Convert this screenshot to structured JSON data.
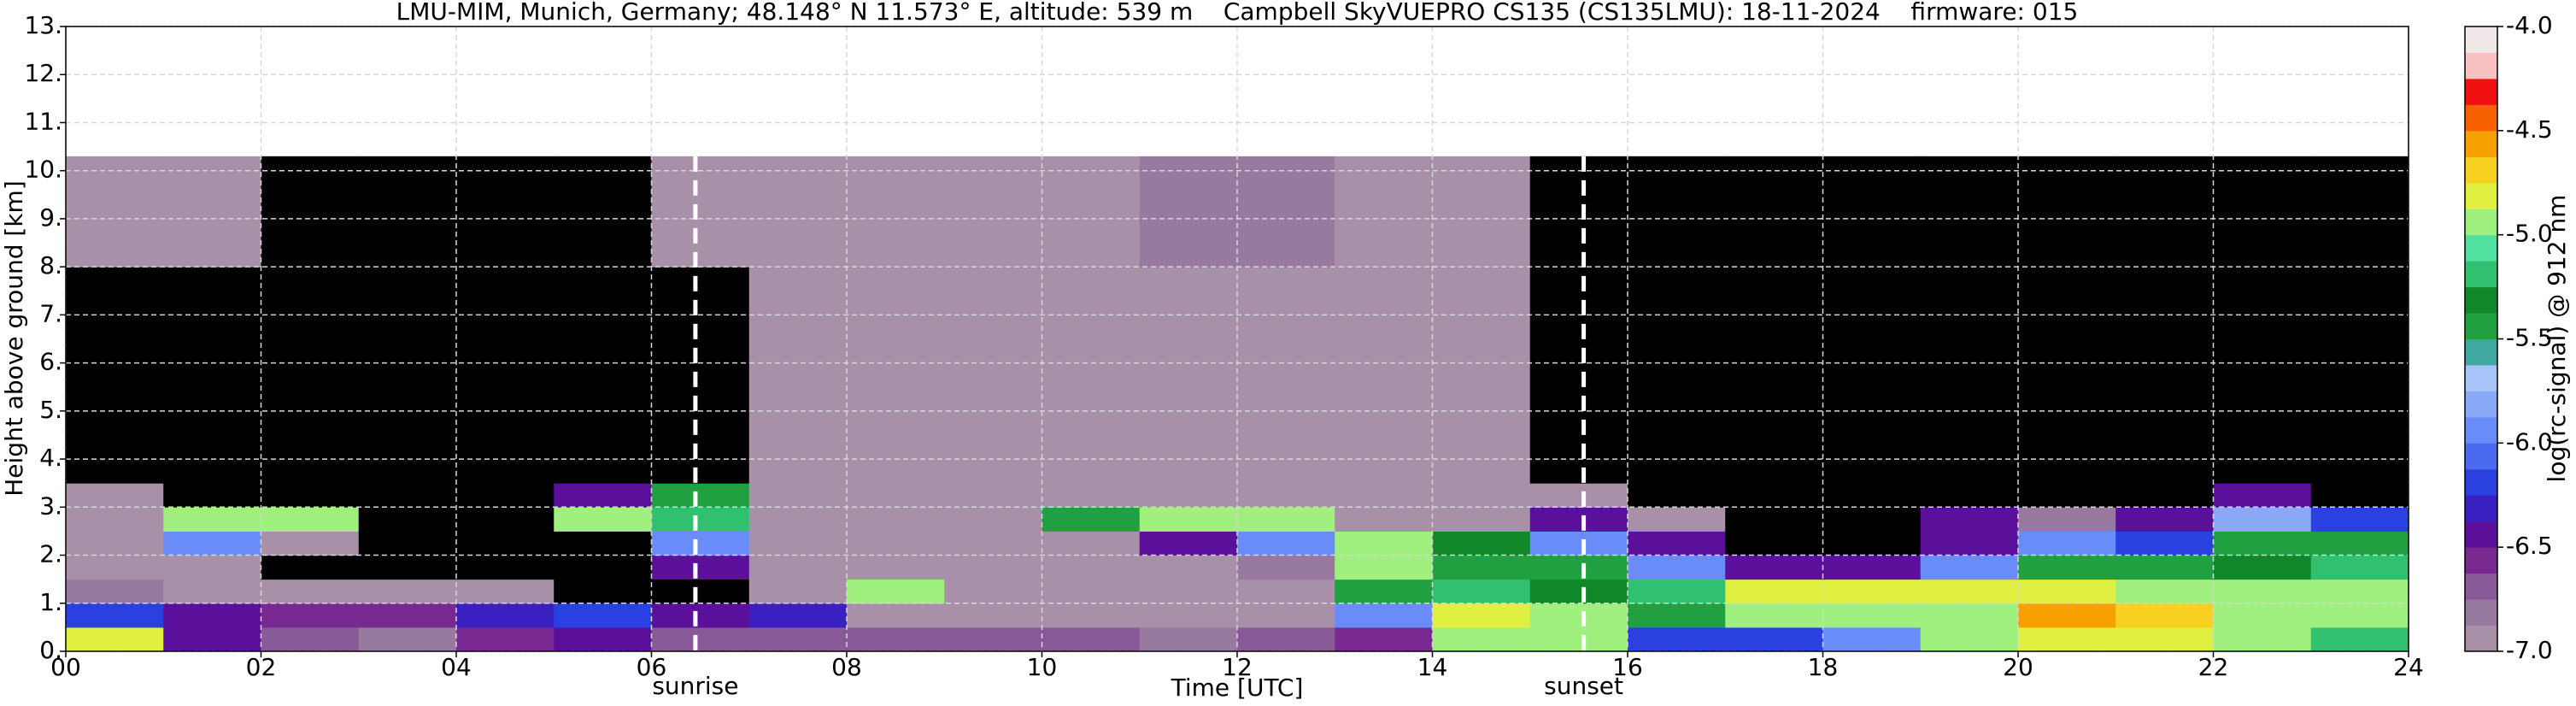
{
  "chart_data": {
    "type": "heatmap",
    "title": "LMU-MIM, Munich, Germany; 48.148° N 11.573° E, altitude: 539 m    Campbell SkyVUEPRO CS135 (CS135LMU): 18-11-2024    firmware: 015",
    "xlabel": "Time [UTC]",
    "ylabel": "Height above ground [km]",
    "colorbar_label": "log(rc-signal) @ 912 nm",
    "xlim": [
      0,
      24
    ],
    "ylim": [
      0,
      13
    ],
    "xticks": [
      {
        "value": 0,
        "label": "00"
      },
      {
        "value": 2,
        "label": "02"
      },
      {
        "value": 4,
        "label": "04"
      },
      {
        "value": 6,
        "label": "06"
      },
      {
        "value": 8,
        "label": "08"
      },
      {
        "value": 10,
        "label": "10"
      },
      {
        "value": 12,
        "label": "12"
      },
      {
        "value": 14,
        "label": "14"
      },
      {
        "value": 16,
        "label": "16"
      },
      {
        "value": 18,
        "label": "18"
      },
      {
        "value": 20,
        "label": "20"
      },
      {
        "value": 22,
        "label": "22"
      },
      {
        "value": 24,
        "label": "24"
      }
    ],
    "yticks": [
      {
        "value": 0,
        "label": "0."
      },
      {
        "value": 1,
        "label": "1."
      },
      {
        "value": 2,
        "label": "2."
      },
      {
        "value": 3,
        "label": "3."
      },
      {
        "value": 4,
        "label": "4."
      },
      {
        "value": 5,
        "label": "5."
      },
      {
        "value": 6,
        "label": "6."
      },
      {
        "value": 7,
        "label": "7."
      },
      {
        "value": 8,
        "label": "8."
      },
      {
        "value": 9,
        "label": "9."
      },
      {
        "value": 10,
        "label": "10."
      },
      {
        "value": 11,
        "label": "11."
      },
      {
        "value": 12,
        "label": "12."
      },
      {
        "value": 13,
        "label": "13."
      }
    ],
    "grid": true,
    "x_edges": [
      0,
      1,
      2,
      3,
      4,
      5,
      6,
      7,
      8,
      9,
      10,
      11,
      12,
      13,
      14,
      15,
      16,
      17,
      18,
      19,
      20,
      21,
      22,
      23,
      24
    ],
    "y_edges": [
      0,
      0.5,
      1,
      1.5,
      2,
      2.5,
      3,
      3.5,
      4,
      6,
      8,
      10.3
    ],
    "z": [
      [
        -4.8,
        -6.2,
        -6.8,
        -7.0,
        -7.0,
        -7.0,
        -7.0,
        -7.5,
        -7.5,
        -7.5,
        -7.0
      ],
      [
        -6.5,
        -6.4,
        -6.9,
        -7.0,
        -6.0,
        -5.0,
        -7.2,
        -7.5,
        -7.5,
        -7.5,
        -7.0
      ],
      [
        -6.7,
        -6.6,
        -7.0,
        -7.2,
        -7.0,
        -5.0,
        -7.5,
        -7.5,
        -7.5,
        -7.5,
        -7.2
      ],
      [
        -6.8,
        -6.6,
        -6.9,
        -7.5,
        -7.5,
        -7.5,
        -7.5,
        -7.5,
        -7.5,
        -7.5,
        -7.2
      ],
      [
        -6.6,
        -6.3,
        -7.0,
        -7.5,
        -7.5,
        -7.5,
        -7.5,
        -7.5,
        -7.5,
        -7.5,
        -7.3
      ],
      [
        -6.5,
        -6.2,
        -7.2,
        -7.5,
        -7.5,
        -5.0,
        -6.5,
        -7.5,
        -7.5,
        -7.5,
        -7.3
      ],
      [
        -6.7,
        -6.4,
        -7.3,
        -6.5,
        -6.0,
        -5.2,
        -5.5,
        -7.3,
        -7.3,
        -7.3,
        -7.0
      ],
      [
        -6.7,
        -6.3,
        -7.0,
        -7.0,
        -7.0,
        -7.0,
        -7.0,
        -7.0,
        -7.0,
        -7.0,
        -6.9
      ],
      [
        -6.7,
        -7.0,
        -5.0,
        -7.0,
        -7.0,
        -7.0,
        -7.0,
        -7.0,
        -7.0,
        -7.0,
        -6.9
      ],
      [
        -6.7,
        -7.0,
        -7.0,
        -7.0,
        -7.0,
        -7.0,
        -7.0,
        -7.0,
        -7.0,
        -7.0,
        -6.9
      ],
      [
        -6.7,
        -7.0,
        -7.0,
        -7.0,
        -7.0,
        -5.5,
        -7.0,
        -7.0,
        -7.0,
        -7.0,
        -6.9
      ],
      [
        -6.8,
        -7.0,
        -7.0,
        -7.0,
        -6.5,
        -5.0,
        -7.0,
        -7.0,
        -7.0,
        -7.0,
        -6.8
      ],
      [
        -6.7,
        -7.0,
        -7.0,
        -6.8,
        -6.0,
        -5.0,
        -7.0,
        -7.0,
        -7.0,
        -7.0,
        -6.8
      ],
      [
        -6.6,
        -6.0,
        -5.5,
        -5.0,
        -5.0,
        -7.0,
        -7.0,
        -7.0,
        -7.0,
        -7.0,
        -6.9
      ],
      [
        -5.0,
        -4.8,
        -5.2,
        -5.5,
        -5.3,
        -7.0,
        -7.0,
        -7.0,
        -7.0,
        -7.0,
        -6.9
      ],
      [
        -5.0,
        -4.9,
        -5.3,
        -5.5,
        -6.0,
        -6.5,
        -7.0,
        -7.2,
        -7.3,
        -7.3,
        -7.2
      ],
      [
        -6.2,
        -5.5,
        -5.2,
        -6.0,
        -6.5,
        -7.0,
        -7.3,
        -7.5,
        -7.5,
        -7.5,
        -7.5
      ],
      [
        -6.2,
        -5.0,
        -4.8,
        -6.5,
        -7.2,
        -7.5,
        -7.5,
        -7.5,
        -7.5,
        -7.5,
        -7.5
      ],
      [
        -6.0,
        -5.0,
        -4.8,
        -6.5,
        -7.3,
        -7.5,
        -7.5,
        -7.5,
        -7.5,
        -7.5,
        -7.5
      ],
      [
        -5.0,
        -5.0,
        -4.8,
        -6.0,
        -6.5,
        -6.5,
        -7.5,
        -7.5,
        -7.5,
        -7.5,
        -7.5
      ],
      [
        -4.8,
        -4.6,
        -4.8,
        -5.5,
        -6.0,
        -6.8,
        -7.5,
        -7.5,
        -7.5,
        -7.5,
        -7.5
      ],
      [
        -4.8,
        -4.7,
        -4.9,
        -5.5,
        -6.2,
        -6.5,
        -7.5,
        -7.5,
        -7.5,
        -7.5,
        -7.5
      ],
      [
        -5.0,
        -4.9,
        -4.9,
        -5.3,
        -5.5,
        -5.8,
        -6.5,
        -7.5,
        -7.5,
        -7.5,
        -7.5
      ],
      [
        -5.2,
        -5.0,
        -5.0,
        -5.2,
        -5.5,
        -6.2,
        -7.5,
        -7.5,
        -7.5,
        -7.5,
        -7.5
      ]
    ],
    "zlim": [
      -7,
      -4
    ],
    "zticks": [
      {
        "value": -4,
        "label": "-4.0"
      },
      {
        "value": -4.5,
        "label": "-4.5"
      },
      {
        "value": -5,
        "label": "-5.0"
      },
      {
        "value": -5.5,
        "label": "-5.5"
      },
      {
        "value": -6,
        "label": "-6.0"
      },
      {
        "value": -6.5,
        "label": "-6.5"
      },
      {
        "value": -7,
        "label": "-7.0"
      }
    ],
    "colors": [
      "#a890a8",
      "#987aa0",
      "#885a98",
      "#782a90",
      "#5a109a",
      "#3a20c0",
      "#2a40e0",
      "#4a6af0",
      "#6a8cf8",
      "#8aaaf8",
      "#a8c4f8",
      "#40a8a0",
      "#20a040",
      "#10882a",
      "#30c070",
      "#50e0a0",
      "#a0f080",
      "#e0f040",
      "#f8d020",
      "#f8a000",
      "#f86000",
      "#f01010",
      "#f8c0c0",
      "#f0e8e8"
    ],
    "under_color": "#000000",
    "vlines": [
      {
        "x": 6.45,
        "label": "sunrise"
      },
      {
        "x": 15.55,
        "label": "sunset"
      }
    ]
  }
}
